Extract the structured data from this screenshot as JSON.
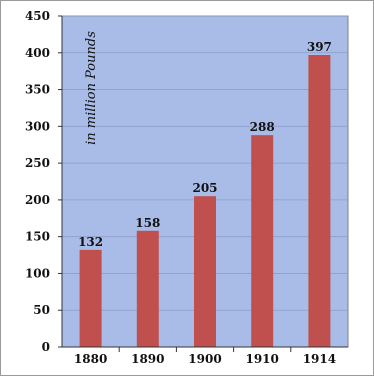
{
  "chart_data": {
    "type": "bar",
    "title": "",
    "xlabel": "",
    "ylabel": "in million Pounds",
    "categories": [
      "1880",
      "1890",
      "1900",
      "1910",
      "1914"
    ],
    "values": [
      132,
      158,
      205,
      288,
      397
    ],
    "ylim": [
      0,
      450
    ],
    "yticks": [
      0,
      50,
      100,
      150,
      200,
      250,
      300,
      350,
      400,
      450
    ],
    "grid": true,
    "legend": "none",
    "colors": {
      "bar": "#c0504d",
      "plot_background": "#a9bce8",
      "gridline": "#8c9dc7",
      "frame": "#7f7f7f"
    }
  }
}
